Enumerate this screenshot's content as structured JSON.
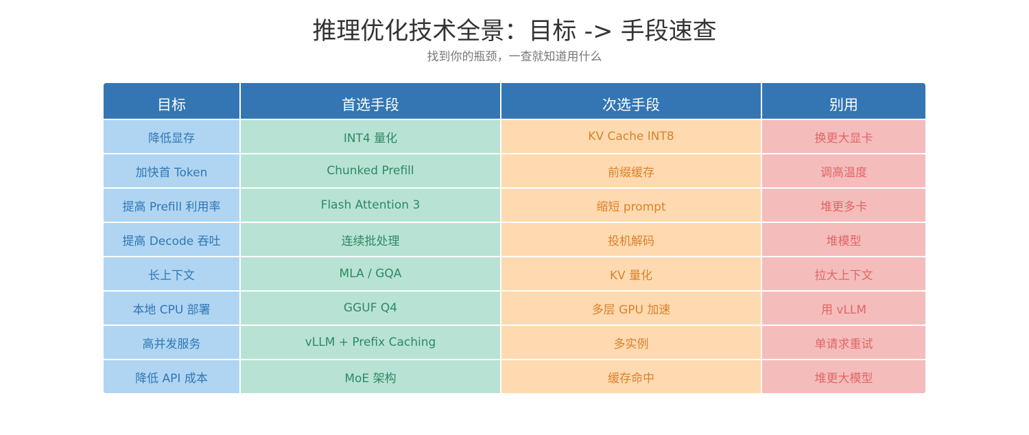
{
  "title": "推理优化技术全景：目标 -> 手段速查",
  "subtitle": "找到你的瓶颈，一查就知道用什么",
  "colors": {
    "header_bg": "#3476b3",
    "goal_bg": "#b0d5f2",
    "goal_text": "#2f76b5",
    "primary_bg": "#b8e2d4",
    "primary_text": "#2c8a62",
    "secondary_bg": "#ffdab0",
    "secondary_text": "#d9812c",
    "avoid_bg": "#f5bcbc",
    "avoid_text": "#e06666"
  },
  "table": {
    "headers": [
      "目标",
      "首选手段",
      "次选手段",
      "别用"
    ],
    "rows": [
      [
        "降低显存",
        "INT4 量化",
        "KV Cache INT8",
        "换更大显卡"
      ],
      [
        "加快首 Token",
        "Chunked Prefill",
        "前缀缓存",
        "调高温度"
      ],
      [
        "提高 Prefill 利用率",
        "Flash Attention 3",
        "缩短 prompt",
        "堆更多卡"
      ],
      [
        "提高 Decode 吞吐",
        "连续批处理",
        "投机解码",
        "堆模型"
      ],
      [
        "长上下文",
        "MLA / GQA",
        "KV 量化",
        "拉大上下文"
      ],
      [
        "本地 CPU 部署",
        "GGUF Q4",
        "多层 GPU 加速",
        "用 vLLM"
      ],
      [
        "高并发服务",
        "vLLM + Prefix Caching",
        "多实例",
        "单请求重试"
      ],
      [
        "降低 API 成本",
        "MoE 架构",
        "缓存命中",
        "堆更大模型"
      ]
    ]
  }
}
